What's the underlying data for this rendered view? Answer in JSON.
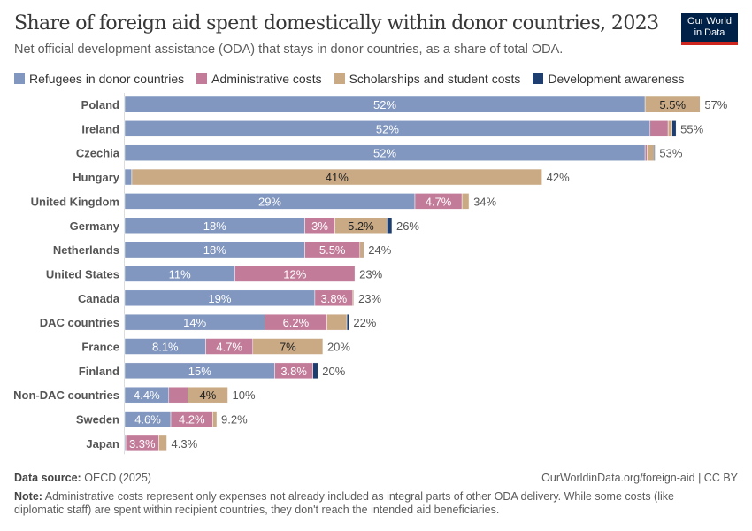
{
  "header": {
    "title": "Share of foreign aid spent domestically within donor countries, 2023",
    "subtitle": "Net official development assistance (ODA) that stays in donor countries, as a share of total ODA.",
    "logo": "Our World in Data"
  },
  "chart_data": {
    "type": "bar",
    "orientation": "horizontal",
    "stacked": true,
    "title": "Share of foreign aid spent domestically within donor countries, 2023",
    "legend_placement": "top",
    "grid": false,
    "xlim": [
      0,
      60
    ],
    "categories": [
      "Poland",
      "Ireland",
      "Czechia",
      "Hungary",
      "United Kingdom",
      "Germany",
      "Netherlands",
      "United States",
      "Canada",
      "DAC countries",
      "France",
      "Finland",
      "Non-DAC countries",
      "Sweden",
      "Japan"
    ],
    "series": [
      {
        "name": "Refugees in donor countries",
        "color": "#8197bf",
        "values": [
          52,
          52.5,
          52,
          0.7,
          29,
          18,
          18,
          11,
          19,
          14,
          8.1,
          15,
          4.4,
          4.6,
          0.1
        ],
        "labels": [
          "52%",
          "52%",
          "52%",
          "",
          "29%",
          "18%",
          "18%",
          "11%",
          "19%",
          "14%",
          "8.1%",
          "15%",
          "4.4%",
          "4.6%",
          ""
        ]
      },
      {
        "name": "Administrative costs",
        "color": "#c27c99",
        "values": [
          0,
          1.8,
          0.2,
          0,
          4.7,
          3,
          5.5,
          12,
          3.8,
          6.2,
          4.7,
          3.8,
          1.9,
          4.2,
          3.3
        ],
        "labels": [
          "",
          "",
          "",
          "",
          "4.7%",
          "3%",
          "5.5%",
          "12%",
          "3.8%",
          "6.2%",
          "4.7%",
          "3.8%",
          "",
          "4.2%",
          "3.3%"
        ]
      },
      {
        "name": "Scholarships and student costs",
        "color": "#c9aa85",
        "values": [
          5.5,
          0.4,
          0.7,
          41,
          0.7,
          5.2,
          0.4,
          0,
          0.1,
          2,
          7,
          0,
          4,
          0.4,
          0.8
        ],
        "labels": [
          "5.5%",
          "",
          "",
          "41%",
          "",
          "5.2%",
          "",
          "",
          "",
          "",
          "7%",
          "",
          "4%",
          "",
          ""
        ]
      },
      {
        "name": "Development awareness",
        "color": "#1d3e6e",
        "values": [
          0,
          0.4,
          0.1,
          0,
          0,
          0.5,
          0,
          0,
          0,
          0.2,
          0,
          0.5,
          0,
          0,
          0
        ],
        "labels": [
          "",
          "",
          "",
          "",
          "",
          "",
          "",
          "",
          "",
          "",
          "",
          "",
          "",
          "",
          ""
        ]
      }
    ],
    "totals": [
      "57%",
      "55%",
      "53%",
      "42%",
      "34%",
      "26%",
      "24%",
      "23%",
      "23%",
      "22%",
      "20%",
      "20%",
      "10%",
      "9.2%",
      "4.3%"
    ]
  },
  "footer": {
    "source_label": "Data source:",
    "source": "OECD (2025)",
    "url": "OurWorldinData.org/foreign-aid | CC BY",
    "note_label": "Note:",
    "note": "Administrative costs represent only expenses not already included as integral parts of other ODA delivery. While some costs (like diplomatic staff) are spent within recipient countries, they don't reach the intended aid beneficiaries."
  }
}
